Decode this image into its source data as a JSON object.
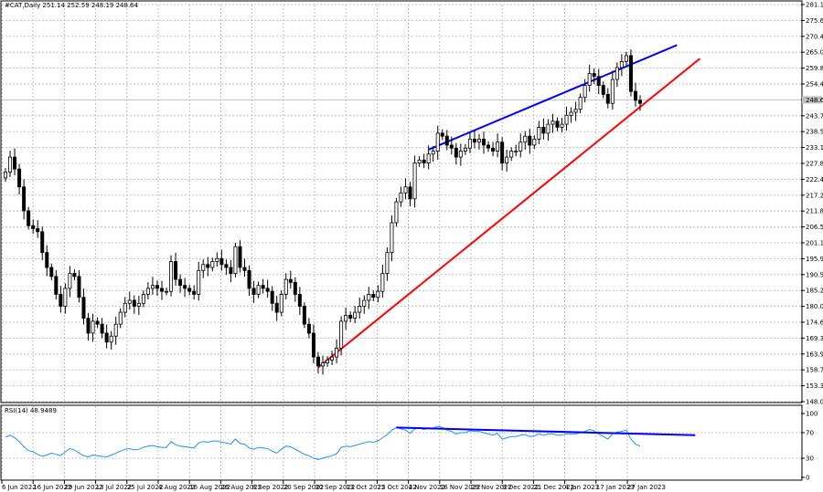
{
  "header": {
    "symbol_info": "#CAT,Daily  251.14 252.59 248.19 248.64",
    "rsi_label": "RSI(14) 48.9489"
  },
  "colors": {
    "background": "#ffffff",
    "candle": "#000000",
    "grid": "#c0c0c0",
    "upper_trendline": "#0000ff",
    "lower_trendline": "#ff0000",
    "rsi_line": "#1e90ff",
    "rsi_divergence_line": "#0000ff",
    "price_tag": "#c0c0c0"
  },
  "chart_data": {
    "type": "candlestick",
    "symbol": "#CAT",
    "timeframe": "Daily",
    "last_ohlc": {
      "open": 251.14,
      "high": 252.59,
      "low": 248.19,
      "close": 248.64
    },
    "current_price_label": "248.64",
    "y_ticks": [
      "281.10",
      "275.65",
      "270.45",
      "265.05",
      "259.85",
      "254.40",
      "248.64",
      "243.75",
      "238.50",
      "233.10",
      "227.85",
      "222.45",
      "217.20",
      "211.80",
      "206.55",
      "201.15",
      "195.90",
      "190.50",
      "185.25",
      "180.00",
      "174.60",
      "169.35",
      "163.95",
      "158.70",
      "153.30",
      "148.05"
    ],
    "ylim": [
      148.05,
      281.1
    ],
    "x_ticks": [
      "6 Jun 2022",
      "16 Jun 2022",
      "29 Jun 2022",
      "13 Jul 2022",
      "25 Jul 2022",
      "4 Aug 2022",
      "16 Aug 2022",
      "26 Aug 2022",
      "8 Sep 2022",
      "20 Sep 2022",
      "30 Sep 2022",
      "13 Oct 2022",
      "25 Oct 2022",
      "4 Nov 2022",
      "16 Nov 2022",
      "29 Nov 2022",
      "9 Dec 2022",
      "21 Dec 2022",
      "4 Jan 2023",
      "17 Jan 2023",
      "27 Jan 2023"
    ],
    "series": [
      {
        "name": "Close",
        "values": [
          225,
          230,
          226,
          220,
          212,
          207,
          206,
          205,
          198,
          193,
          190,
          184,
          180,
          186,
          191,
          190,
          183,
          176,
          171,
          175,
          174,
          171,
          168,
          170,
          174,
          178,
          181,
          182,
          180,
          181,
          184,
          186,
          187,
          186,
          185,
          185,
          195,
          189,
          187,
          186,
          185,
          184,
          192,
          194,
          193,
          195,
          196,
          194,
          193,
          191,
          200,
          193,
          192,
          186,
          184,
          187,
          186,
          185,
          181,
          178,
          184,
          189,
          188,
          184,
          180,
          174,
          171,
          163,
          160,
          161,
          162,
          163,
          166,
          175,
          177,
          176,
          178,
          180,
          182,
          184,
          183,
          185,
          191,
          198,
          208,
          215,
          218,
          220,
          216,
          228,
          229,
          228,
          231,
          232,
          238,
          237,
          234,
          233,
          230,
          232,
          233,
          236,
          235,
          236,
          234,
          233,
          232,
          235,
          228,
          230,
          232,
          232,
          235,
          237,
          234,
          236,
          240,
          238,
          241,
          242,
          240,
          241,
          244,
          245,
          246,
          250,
          254,
          258,
          257,
          254,
          251,
          248,
          256,
          260,
          262,
          264,
          252,
          249,
          248
        ]
      }
    ],
    "trendlines": [
      {
        "kind": "upper",
        "from": {
          "x_index": 92,
          "y": 232.5
        },
        "to": {
          "x_index": 146,
          "y": 267.5
        }
      },
      {
        "kind": "lower",
        "from": {
          "x_index": 68,
          "y": 159.5
        },
        "to": {
          "x_index": 151,
          "y": 263.0
        }
      }
    ],
    "rsi": {
      "name": "RSI(14)",
      "y_ticks": [
        "100",
        "70",
        "30",
        "0"
      ],
      "ylim": [
        0,
        100
      ],
      "values": [
        63,
        66,
        62,
        56,
        48,
        42,
        40,
        36,
        33,
        35,
        38,
        36,
        34,
        40,
        45,
        43,
        38,
        34,
        32,
        35,
        34,
        33,
        32,
        35,
        38,
        41,
        44,
        45,
        43,
        44,
        47,
        49,
        50,
        48,
        47,
        47,
        56,
        51,
        49,
        48,
        47,
        46,
        54,
        56,
        55,
        57,
        57,
        55,
        54,
        52,
        60,
        53,
        52,
        46,
        44,
        47,
        46,
        45,
        41,
        38,
        44,
        49,
        48,
        44,
        40,
        36,
        34,
        30,
        28,
        30,
        32,
        34,
        37,
        47,
        49,
        48,
        50,
        52,
        54,
        56,
        55,
        57,
        62,
        67,
        74,
        78,
        76,
        74,
        69,
        76,
        77,
        75,
        77,
        77,
        80,
        78,
        74,
        72,
        68,
        70,
        70,
        73,
        72,
        72,
        70,
        68,
        66,
        69,
        60,
        62,
        64,
        64,
        66,
        67,
        64,
        65,
        68,
        66,
        68,
        68,
        66,
        66,
        68,
        68,
        68,
        70,
        72,
        75,
        73,
        68,
        64,
        60,
        68,
        71,
        72,
        74,
        60,
        52,
        49
      ],
      "divergence_line": {
        "from": {
          "x_index": 85,
          "y": 78
        },
        "to": {
          "x_index": 150,
          "y": 66
        }
      }
    }
  }
}
